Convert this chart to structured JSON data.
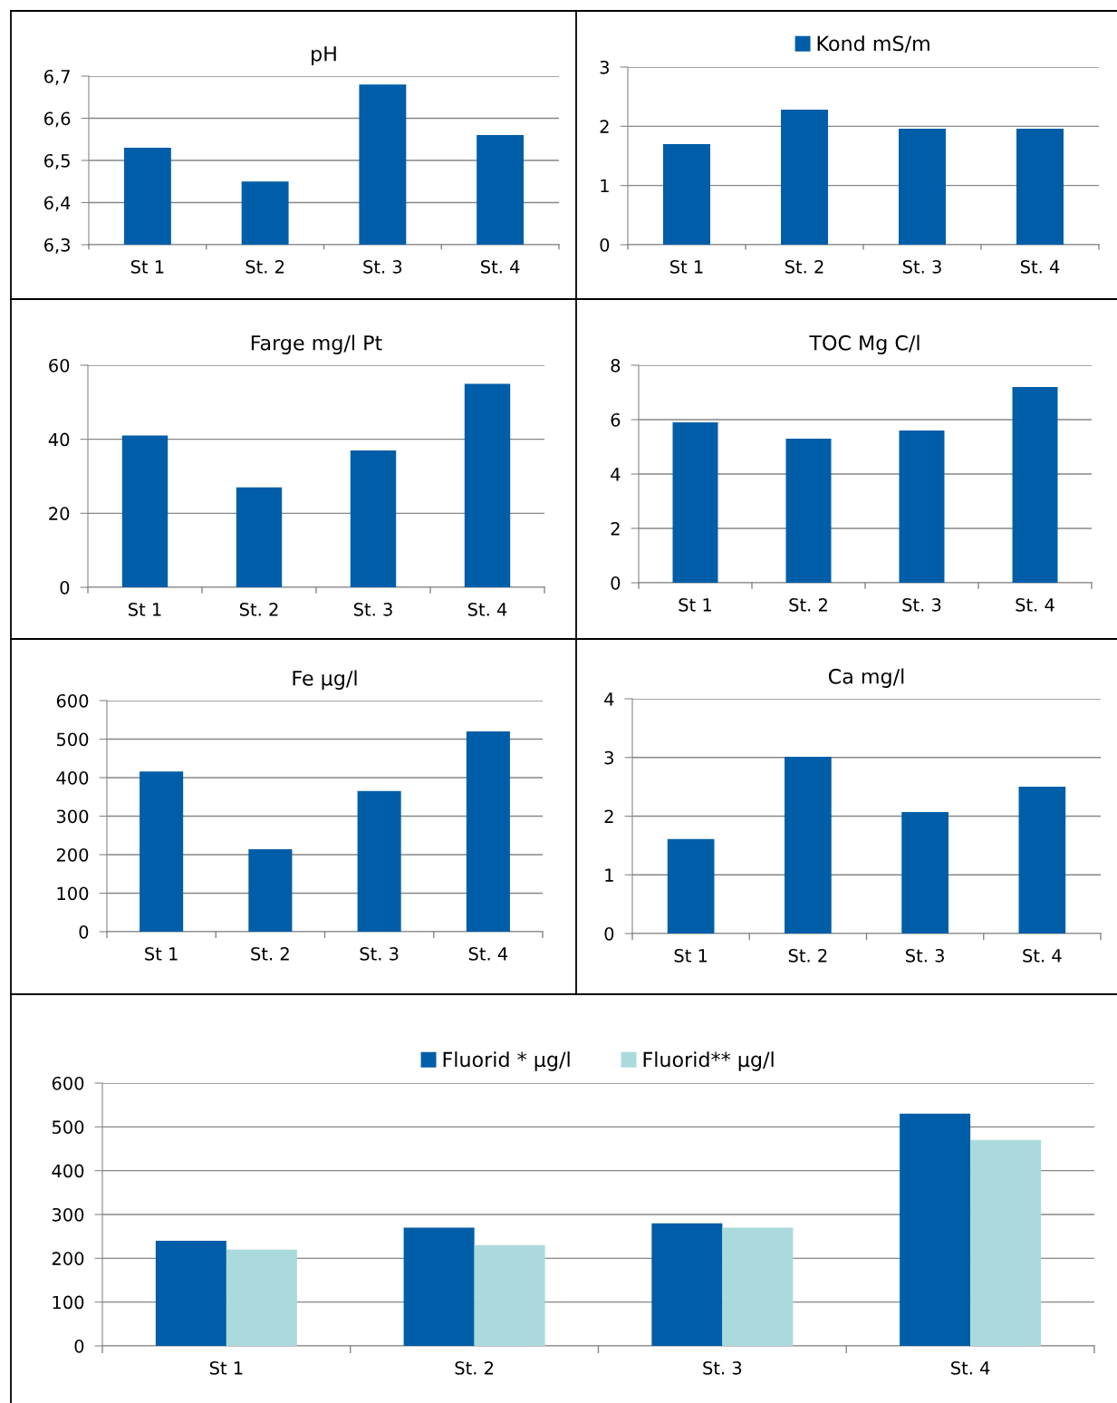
{
  "chart_data": [
    {
      "type": "bar",
      "title": "pH",
      "categories": [
        "St 1",
        "St. 2",
        "St. 3",
        "St. 4"
      ],
      "color": "#005ea8",
      "values": [
        6.53,
        6.45,
        6.68,
        6.56
      ],
      "ylim": [
        6.3,
        6.7
      ],
      "yticks": [
        {
          "value": 6.3,
          "label": "6,3"
        },
        {
          "value": 6.4,
          "label": "6,4"
        },
        {
          "value": 6.5,
          "label": "6,5"
        },
        {
          "value": 6.6,
          "label": "6,6"
        },
        {
          "value": 6.7,
          "label": "6,7"
        }
      ],
      "grid": "y",
      "legend": false
    },
    {
      "type": "bar",
      "categories": [
        "St 1",
        "St. 2",
        "St. 3",
        "St. 4"
      ],
      "series": [
        {
          "name": "Kond mS/m",
          "color": "#005ea8",
          "values": [
            1.7,
            2.28,
            1.96,
            1.96
          ]
        }
      ],
      "ylim": [
        0,
        3
      ],
      "yticks": [
        0,
        1,
        2,
        3
      ],
      "grid": "y",
      "legend": "top"
    },
    {
      "type": "bar",
      "title": "Farge mg/l Pt",
      "categories": [
        "St 1",
        "St. 2",
        "St. 3",
        "St. 4"
      ],
      "color": "#005ea8",
      "values": [
        41,
        27,
        37,
        55
      ],
      "ylim": [
        0,
        60
      ],
      "yticks": [
        0,
        20,
        40,
        60
      ],
      "grid": "y",
      "legend": false
    },
    {
      "type": "bar",
      "title": "TOC Mg C/l",
      "categories": [
        "St 1",
        "St. 2",
        "St. 3",
        "St. 4"
      ],
      "color": "#005ea8",
      "values": [
        5.9,
        5.3,
        5.6,
        7.2
      ],
      "ylim": [
        0,
        8
      ],
      "yticks": [
        0,
        2,
        4,
        6,
        8
      ],
      "grid": "y",
      "legend": false
    },
    {
      "type": "bar",
      "title": "Fe µg/l",
      "categories": [
        "St 1",
        "St. 2",
        "St. 3",
        "St. 4"
      ],
      "color": "#005ea8",
      "values": [
        416,
        214,
        365,
        520
      ],
      "ylim": [
        0,
        600
      ],
      "yticks": [
        0,
        100,
        200,
        300,
        400,
        500,
        600
      ],
      "grid": "y",
      "legend": false
    },
    {
      "type": "bar",
      "title": "Ca mg/l",
      "categories": [
        "St 1",
        "St. 2",
        "St. 3",
        "St. 4"
      ],
      "color": "#005ea8",
      "values": [
        1.61,
        3.01,
        2.07,
        2.5
      ],
      "ylim": [
        0,
        4
      ],
      "yticks": [
        0,
        1,
        2,
        3,
        4
      ],
      "grid": "y",
      "legend": false
    },
    {
      "type": "bar",
      "categories": [
        "St 1",
        "St. 2",
        "St. 3",
        "St. 4"
      ],
      "series": [
        {
          "name": "Fluorid * µg/l",
          "color": "#005ea8",
          "values": [
            240,
            270,
            280,
            530
          ]
        },
        {
          "name": "Fluorid** µg/l",
          "color": "#abdadc",
          "values": [
            220,
            230,
            270,
            470
          ]
        }
      ],
      "ylim": [
        0,
        600
      ],
      "yticks": [
        0,
        100,
        200,
        300,
        400,
        500,
        600
      ],
      "grid": "y",
      "legend": "top"
    }
  ]
}
